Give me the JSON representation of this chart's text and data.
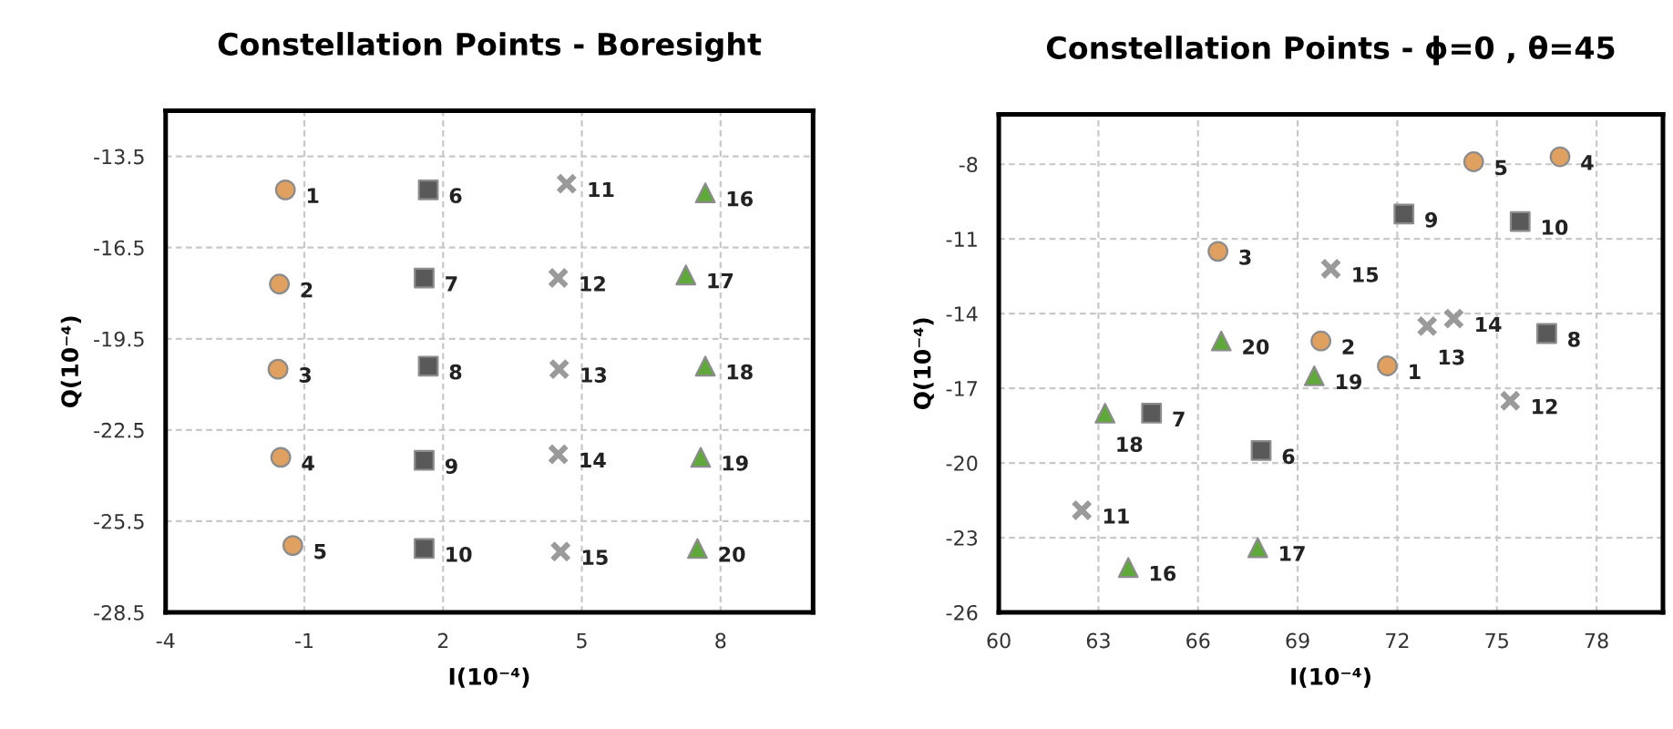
{
  "chart_data": [
    {
      "type": "scatter",
      "title": "Constellation Points - Boresight",
      "xlabel": "I(10⁻⁴)",
      "ylabel": "Q(10⁻⁴)",
      "xlim": [
        -4,
        10
      ],
      "xticks": [
        -4,
        -1,
        2,
        5,
        8
      ],
      "ylim": [
        -28.5,
        -12
      ],
      "yticks": [
        -13.5,
        -16.5,
        -19.5,
        -22.5,
        -25.5,
        -28.5
      ],
      "grid": true,
      "series": [
        {
          "color": "#e0a060",
          "marker": "circle",
          "x": [
            -1.41,
            -1.54,
            -1.57,
            -1.51,
            -1.25
          ],
          "values": [
            -14.6,
            -17.7,
            -20.5,
            -23.4,
            -26.3
          ]
        },
        {
          "color": "#595959",
          "marker": "square",
          "x": [
            1.68,
            1.59,
            1.68,
            1.59,
            1.59
          ],
          "values": [
            -14.6,
            -17.5,
            -20.4,
            -23.5,
            -26.4
          ]
        },
        {
          "color": "#9a9a9a",
          "marker": "cross",
          "x": [
            4.67,
            4.49,
            4.51,
            4.49,
            4.54
          ],
          "values": [
            -14.4,
            -17.5,
            -20.5,
            -23.3,
            -26.5
          ]
        },
        {
          "color": "#5fa83a",
          "marker": "triangle",
          "x": [
            7.67,
            7.25,
            7.67,
            7.57,
            7.5
          ],
          "values": [
            -14.7,
            -17.4,
            -20.4,
            -23.4,
            -26.4
          ]
        }
      ],
      "annotations": [
        {
          "text": "1",
          "x": -1.41,
          "y": -14.6
        },
        {
          "text": "2",
          "x": -1.54,
          "y": -17.7
        },
        {
          "text": "3",
          "x": -1.57,
          "y": -20.5
        },
        {
          "text": "4",
          "x": -1.51,
          "y": -23.4
        },
        {
          "text": "5",
          "x": -1.25,
          "y": -26.3
        },
        {
          "text": "6",
          "x": 1.68,
          "y": -14.6
        },
        {
          "text": "7",
          "x": 1.59,
          "y": -17.5
        },
        {
          "text": "8",
          "x": 1.68,
          "y": -20.4
        },
        {
          "text": "9",
          "x": 1.59,
          "y": -23.5
        },
        {
          "text": "10",
          "x": 1.59,
          "y": -26.4
        },
        {
          "text": "11",
          "x": 4.67,
          "y": -14.4
        },
        {
          "text": "12",
          "x": 4.49,
          "y": -17.5
        },
        {
          "text": "13",
          "x": 4.51,
          "y": -20.5
        },
        {
          "text": "14",
          "x": 4.49,
          "y": -23.3
        },
        {
          "text": "15",
          "x": 4.54,
          "y": -26.5
        },
        {
          "text": "16",
          "x": 7.67,
          "y": -14.7
        },
        {
          "text": "17",
          "x": 7.25,
          "y": -17.4
        },
        {
          "text": "18",
          "x": 7.67,
          "y": -20.4
        },
        {
          "text": "19",
          "x": 7.57,
          "y": -23.4
        },
        {
          "text": "20",
          "x": 7.5,
          "y": -26.4
        }
      ]
    },
    {
      "type": "scatter",
      "title": "Constellation Points - ϕ=0 , θ=45",
      "xlabel": "I(10⁻⁴)",
      "ylabel": "Q(10⁻⁴)",
      "xlim": [
        60,
        80
      ],
      "xticks": [
        60,
        63,
        66,
        69,
        72,
        75,
        78
      ],
      "ylim": [
        -26,
        -6
      ],
      "yticks": [
        -8,
        -11,
        -14,
        -17,
        -20,
        -23,
        -26
      ],
      "grid": true,
      "series": [
        {
          "color": "#e0a060",
          "marker": "circle",
          "x": [
            71.7,
            69.7,
            66.6,
            76.9,
            74.3
          ],
          "values": [
            -16.1,
            -15.1,
            -11.5,
            -7.7,
            -7.9
          ]
        },
        {
          "color": "#595959",
          "marker": "square",
          "x": [
            67.9,
            64.6,
            76.5,
            72.2,
            75.7
          ],
          "values": [
            -19.5,
            -18.0,
            -14.8,
            -10.0,
            -10.3
          ]
        },
        {
          "color": "#9a9a9a",
          "marker": "cross",
          "x": [
            62.5,
            75.4,
            72.9,
            73.7,
            70.0
          ],
          "values": [
            -21.9,
            -17.5,
            -14.5,
            -14.2,
            -12.2
          ]
        },
        {
          "color": "#5fa83a",
          "marker": "triangle",
          "x": [
            63.9,
            67.8,
            63.2,
            69.5,
            66.7
          ],
          "values": [
            -24.2,
            -23.4,
            -18.0,
            -16.5,
            -15.1
          ]
        }
      ],
      "annotations": [
        {
          "text": "1",
          "x": 71.7,
          "y": -16.1
        },
        {
          "text": "2",
          "x": 69.7,
          "y": -15.1
        },
        {
          "text": "3",
          "x": 66.6,
          "y": -11.5
        },
        {
          "text": "4",
          "x": 76.9,
          "y": -7.7
        },
        {
          "text": "5",
          "x": 74.3,
          "y": -7.9
        },
        {
          "text": "6",
          "x": 67.9,
          "y": -19.5
        },
        {
          "text": "7",
          "x": 64.6,
          "y": -18.0
        },
        {
          "text": "8",
          "x": 76.5,
          "y": -14.8
        },
        {
          "text": "9",
          "x": 72.2,
          "y": -10.0
        },
        {
          "text": "10",
          "x": 75.7,
          "y": -10.3
        },
        {
          "text": "11",
          "x": 62.5,
          "y": -21.9
        },
        {
          "text": "12",
          "x": 75.4,
          "y": -17.5
        },
        {
          "text": "13",
          "x": 72.9,
          "y": -14.5
        },
        {
          "text": "14",
          "x": 73.7,
          "y": -14.2
        },
        {
          "text": "15",
          "x": 70.0,
          "y": -12.2
        },
        {
          "text": "16",
          "x": 63.9,
          "y": -24.2
        },
        {
          "text": "17",
          "x": 67.8,
          "y": -23.4
        },
        {
          "text": "18",
          "x": 63.2,
          "y": -18.0
        },
        {
          "text": "19",
          "x": 69.5,
          "y": -16.5
        },
        {
          "text": "20",
          "x": 66.7,
          "y": -15.1
        }
      ]
    }
  ]
}
